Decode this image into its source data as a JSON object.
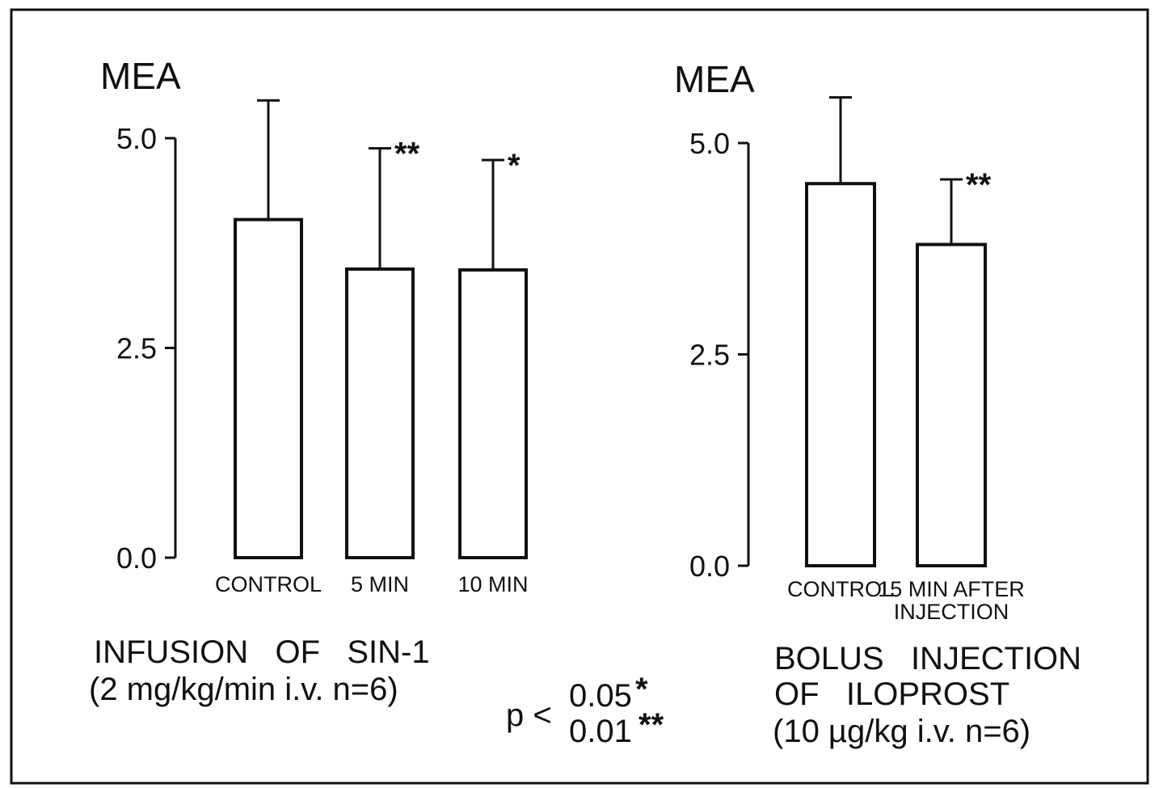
{
  "chart_data": [
    {
      "type": "bar",
      "ylabel": "MEA",
      "yticks": [
        "0.0",
        "2.5",
        "5.0"
      ],
      "ylim": [
        0,
        5
      ],
      "categories": [
        "CONTROL",
        "5 MIN",
        "10 MIN"
      ],
      "values": [
        4.03,
        3.44,
        3.43
      ],
      "error_upper": [
        5.45,
        4.88,
        4.74
      ],
      "significance": [
        "",
        "**",
        "*"
      ],
      "caption_line1": "INFUSION   OF   SIN-1",
      "caption_line2": "(2 mg/kg/min i.v. n=6)",
      "grid": false
    },
    {
      "type": "bar",
      "ylabel": "MEA",
      "yticks": [
        "0.0",
        "2.5",
        "5.0"
      ],
      "ylim": [
        0,
        5
      ],
      "categories": [
        "CONTROL",
        "15 MIN AFTER INJECTION"
      ],
      "category_lines": [
        [
          "CONTROL"
        ],
        [
          "15 MIN AFTER",
          "INJECTION"
        ]
      ],
      "values": [
        4.52,
        3.8
      ],
      "error_upper": [
        5.54,
        4.57
      ],
      "significance": [
        "",
        "**"
      ],
      "caption_line1": "BOLUS   INJECTION",
      "caption_line2": "OF   ILOPROST",
      "caption_line3": "(10 µg/kg i.v. n=6)",
      "grid": false
    }
  ],
  "legend": {
    "p_label": "p <",
    "rows": [
      {
        "value": "0.05",
        "stars": "*"
      },
      {
        "value": "0.01",
        "stars": "**"
      }
    ]
  }
}
